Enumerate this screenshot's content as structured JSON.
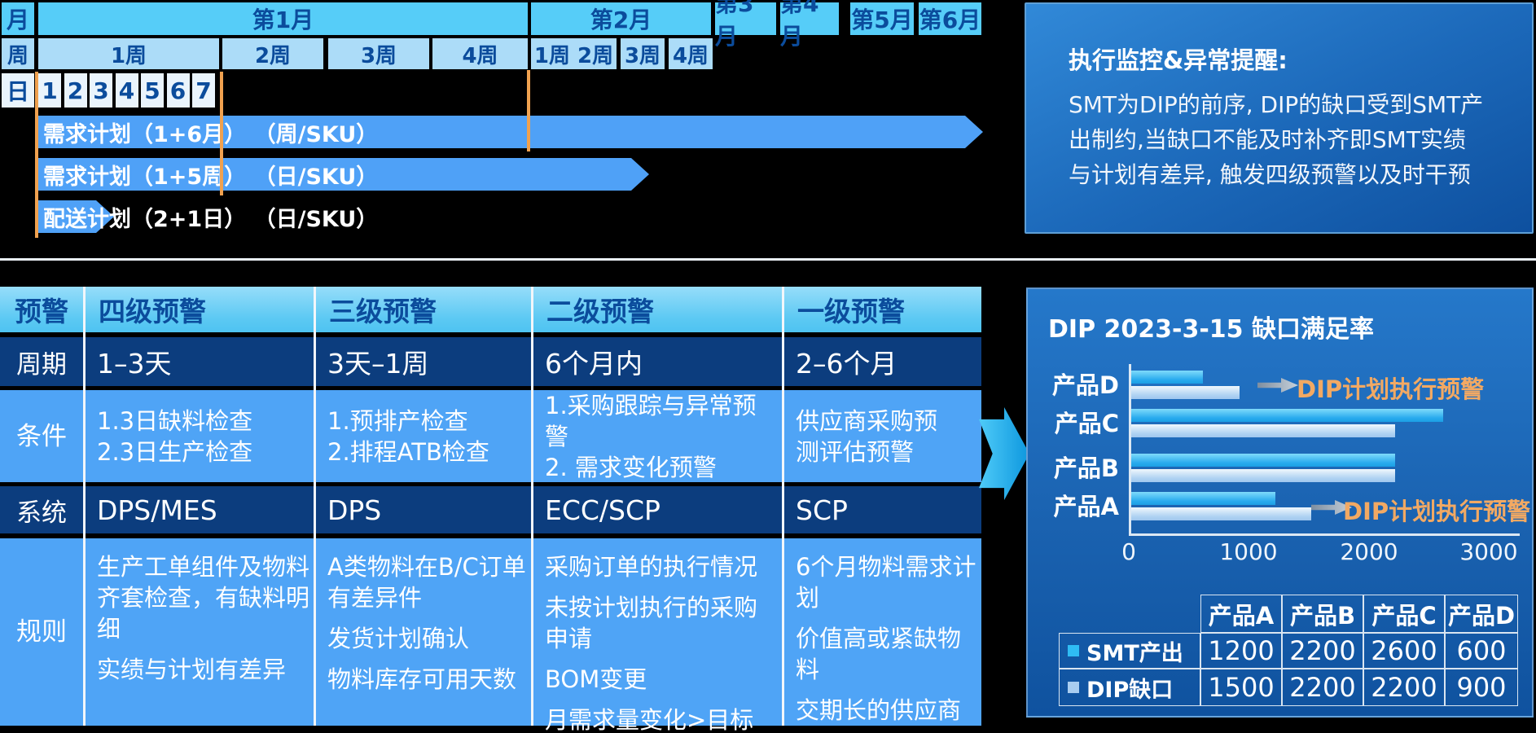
{
  "gantt": {
    "axis": {
      "month": "月",
      "week": "周",
      "day": "日"
    },
    "months": [
      "第1月",
      "第2月",
      "第3月",
      "第4月",
      "第5月",
      "第6月"
    ],
    "weeks": [
      "1周",
      "2周",
      "3周",
      "4周",
      "1周 2周",
      "3周",
      "4周"
    ],
    "days": [
      "1",
      "2",
      "3",
      "4",
      "5",
      "6",
      "7"
    ],
    "bars": [
      "需求计划（1+6月） （周/SKU）",
      "需求计划（1+5周） （日/SKU）",
      "配送计划（2+1日） （日/SKU）"
    ]
  },
  "monitor": {
    "title": "执行监控&异常提醒:",
    "body": "SMT为DIP的前序, DIP的缺口受到SMT产\n出制约,当缺口不能及时补齐即SMT实绩\n与计划有差异, 触发四级预警以及时干预"
  },
  "warning_table": {
    "header": [
      "预警",
      "四级预警",
      "三级预警",
      "二级预警",
      "一级预警"
    ],
    "rows": [
      {
        "label": "周期",
        "type": "text",
        "cells": [
          "1–3天",
          "3天–1周",
          "6个月内",
          "2–6个月"
        ]
      },
      {
        "label": "条件",
        "type": "multiline",
        "cells": [
          "1.3日缺料检查\n2.3日生产检查",
          "1.预排产检查\n2.排程ATB检查",
          "1.采购跟踪与异常预警\n2. 需求变化预警",
          "供应商采购预\n测评估预警"
        ]
      },
      {
        "label": "系统",
        "type": "text",
        "cells": [
          "DPS/MES",
          "DPS",
          "ECC/SCP",
          "SCP"
        ]
      },
      {
        "label": "规则",
        "type": "list",
        "cells": [
          [
            "生产工单组件及物料齐套检查，有缺料明细",
            "实绩与计划有差异"
          ],
          [
            "A类物料在B/C订单有差异件",
            "发货计划确认",
            "物料库存可用天数"
          ],
          [
            "采购订单的执行情况",
            "未按计划执行的采购申请",
            "BOM变更",
            "月需求量变化>目标"
          ],
          [
            "6个月物料需求计划",
            "价值高或紧缺物料",
            "交期长的供应商"
          ]
        ]
      }
    ]
  },
  "dip": {
    "title": "DIP 2023-3-15 缺口满足率",
    "annotations": [
      {
        "text": "DIP计划执行预警",
        "row": "产品D"
      },
      {
        "text": "DIP计划执行预警",
        "row": "产品A"
      }
    ],
    "table": {
      "columns": [
        "产品A",
        "产品B",
        "产品C",
        "产品D"
      ],
      "rows": [
        {
          "label": "SMT产出",
          "legend": "#2FBCF4",
          "values": [
            "1200",
            "2200",
            "2600",
            "600"
          ]
        },
        {
          "label": "DIP缺口",
          "legend": "#A8CDF0",
          "values": [
            "1500",
            "2200",
            "2200",
            "900"
          ]
        }
      ]
    }
  },
  "chart_data": {
    "type": "bar",
    "orientation": "horizontal",
    "title": "DIP 2023-3-15 缺口满足率",
    "categories": [
      "产品D",
      "产品C",
      "产品B",
      "产品A"
    ],
    "series": [
      {
        "name": "SMT产出",
        "values": [
          600,
          2600,
          2200,
          1200
        ]
      },
      {
        "name": "DIP缺口",
        "values": [
          900,
          2200,
          2200,
          1500
        ]
      }
    ],
    "xlabel": "",
    "ylabel": "",
    "xlim": [
      0,
      3000
    ],
    "xticks": [
      0,
      1000,
      2000,
      3000
    ],
    "grid": false,
    "legend_position": "bottom-table"
  },
  "colors": {
    "accent_orange": "#F0A14F",
    "annotation_orange": "#F2A963",
    "gantt_bar_blue": "#4FA1F7",
    "month_cell": "#56CDF8",
    "week_cell": "#ACDCF8",
    "day_cell": "#EAF4FC",
    "dark_row": "#0C3D7E",
    "light_row": "#4FA4F6",
    "smt_series": "#2FBCF4",
    "dip_series": "#A8CDF0"
  }
}
